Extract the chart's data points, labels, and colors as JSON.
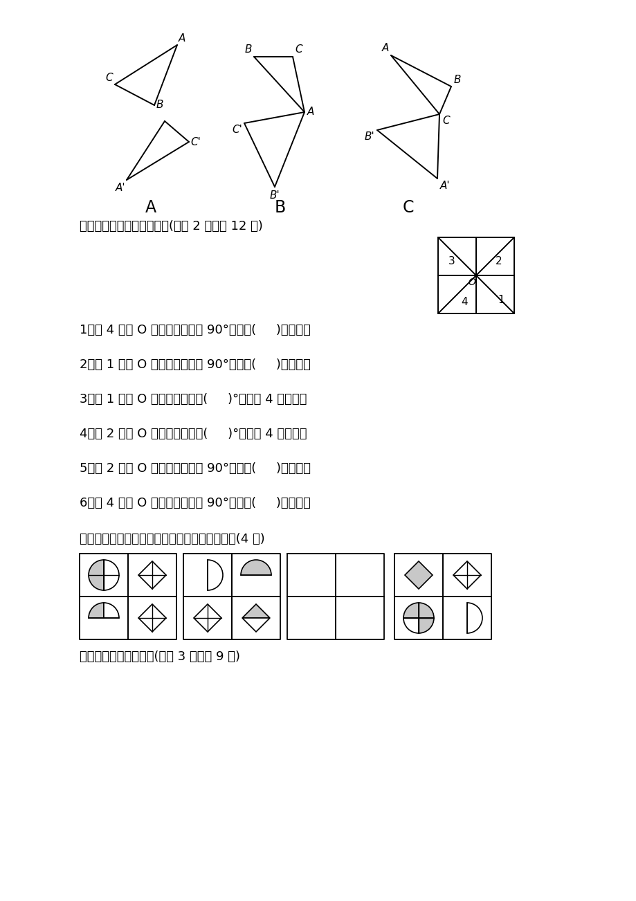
{
  "bg_color": "#ffffff",
  "section3_title": "三、先观察下图，再填空。(每题 2 分，共 12 分)",
  "section4_title": "四、根据变化规律，在空白处画上合适的图形。(4 分)",
  "section5_title": "五、按要求，画一画。(每题 3 分，共 9 分)",
  "q1": "1．图 4 绕点 O 逆时针方向旋转 90°到达图(     )的位置。",
  "q2": "2．图 1 绕点 O 逆时针方向旋转 90°到达图(     )的位置。",
  "q3": "3．图 1 绕点 O 顺时针方向旋转(     )°到达图 4 的位置。",
  "q4": "4．图 2 绕点 O 逆时针方向旋转(     )°到达图 4 的位置。",
  "q5": "5．图 2 绕点 O 顺时针方向旋转 90°到达图(     )的位置。",
  "q6": "6．图 4 绕点 O 顺时针方向旋转 90°到达图(     )的位置。"
}
